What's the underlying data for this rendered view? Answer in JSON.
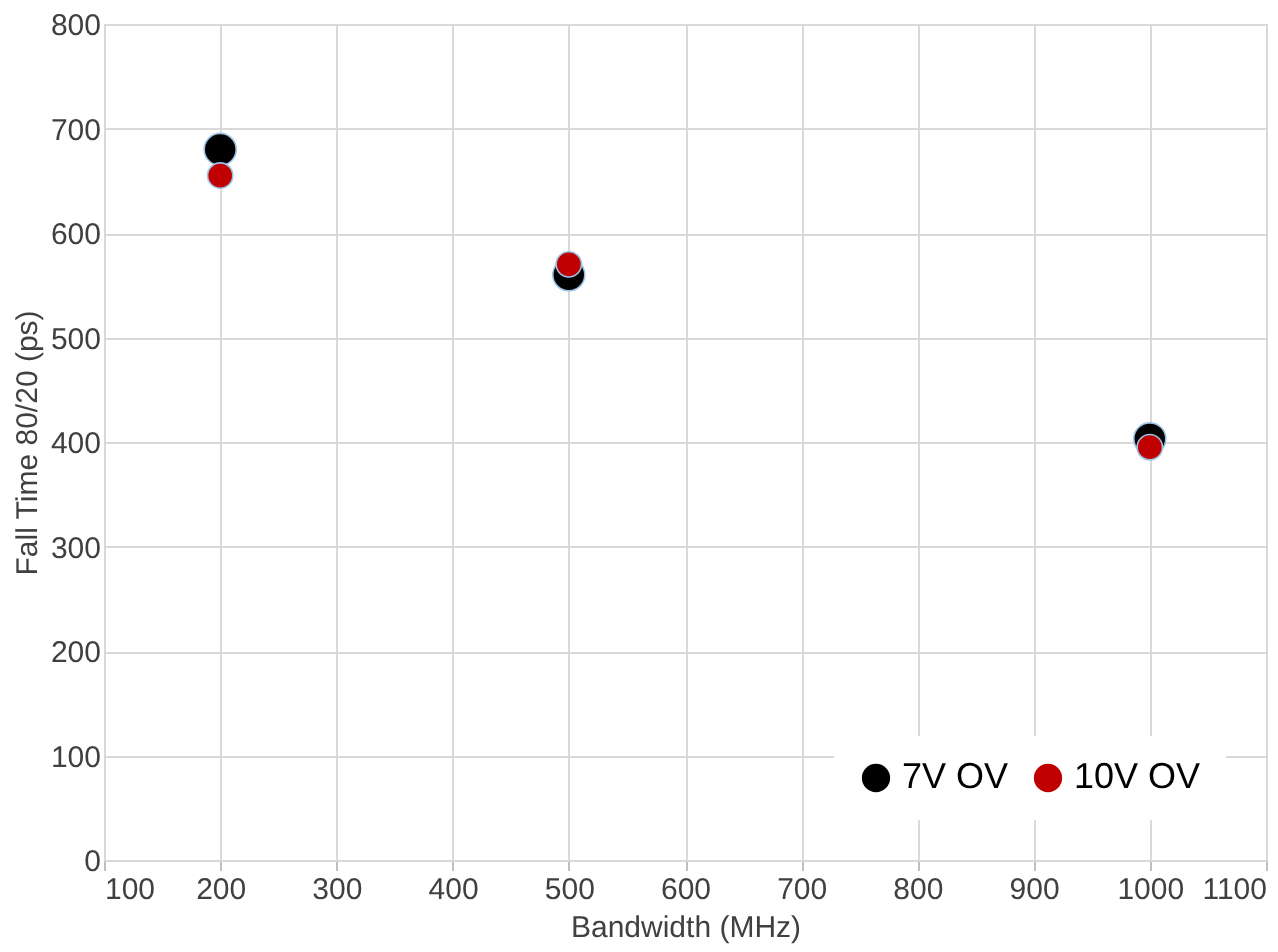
{
  "chart_data": {
    "type": "scatter",
    "xlabel": "Bandwidth (MHz)",
    "ylabel": "Fall Time 80/20 (ps)",
    "x": [
      200,
      500,
      1000
    ],
    "series": [
      {
        "name": "7V OV",
        "color": "#000000",
        "values": [
          680,
          560,
          403
        ]
      },
      {
        "name": "10V OV",
        "color": "#c00000",
        "values": [
          655,
          570,
          395
        ]
      }
    ],
    "xlim": [
      100,
      1100
    ],
    "xticks": [
      100,
      200,
      300,
      400,
      500,
      600,
      700,
      800,
      900,
      1000,
      1100
    ],
    "ylim": [
      0,
      800
    ],
    "yticks": [
      0,
      100,
      200,
      300,
      400,
      500,
      600,
      700,
      800
    ],
    "grid": true,
    "legend": "bottom right",
    "marker": "circle"
  }
}
